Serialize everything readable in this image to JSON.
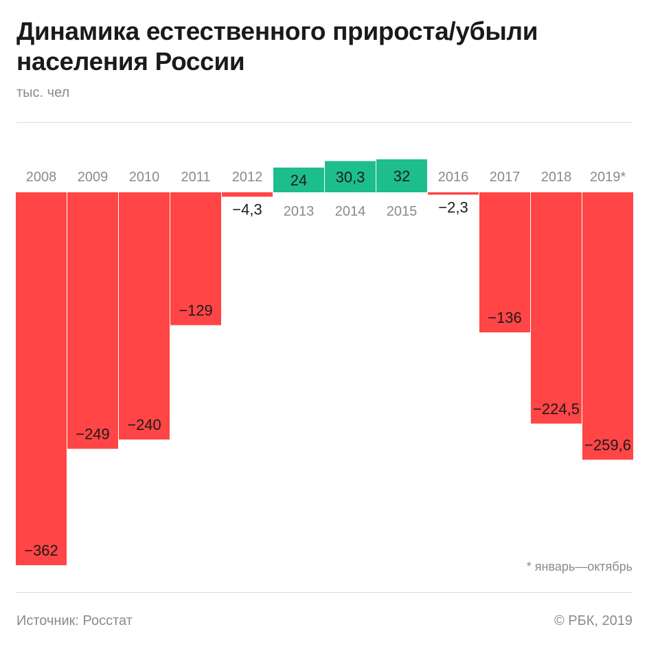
{
  "header": {
    "title": "Динамика естественного прироста/убыли населения России",
    "unit": "тыс. чел"
  },
  "footer": {
    "note": "* январь—октябрь",
    "source": "Источник: Росстат",
    "copyright": "© РБК, 2019"
  },
  "colors": {
    "negative": "#ff4545",
    "positive": "#1dbd8c",
    "year_label": "#8a8a8a",
    "value_label": "#1b1b1b"
  },
  "chart_data": {
    "type": "bar",
    "categories": [
      "2008",
      "2009",
      "2010",
      "2011",
      "2012",
      "2013",
      "2014",
      "2015",
      "2016",
      "2017",
      "2018",
      "2019*"
    ],
    "values": [
      -362,
      -249,
      -240,
      -129,
      -4.3,
      24,
      30.3,
      32,
      -2.3,
      -136,
      -224.5,
      -259.6
    ],
    "value_labels": [
      "−362",
      "−249",
      "−240",
      "−129",
      "−4,3",
      "24",
      "30,3",
      "32",
      "−2,3",
      "−136",
      "−224,5",
      "−259,6"
    ],
    "title": "Динамика естественного прироста/убыли населения России",
    "ylabel": "тыс. чел",
    "ylim": [
      -362,
      32
    ],
    "grid": false,
    "legend": "none"
  }
}
